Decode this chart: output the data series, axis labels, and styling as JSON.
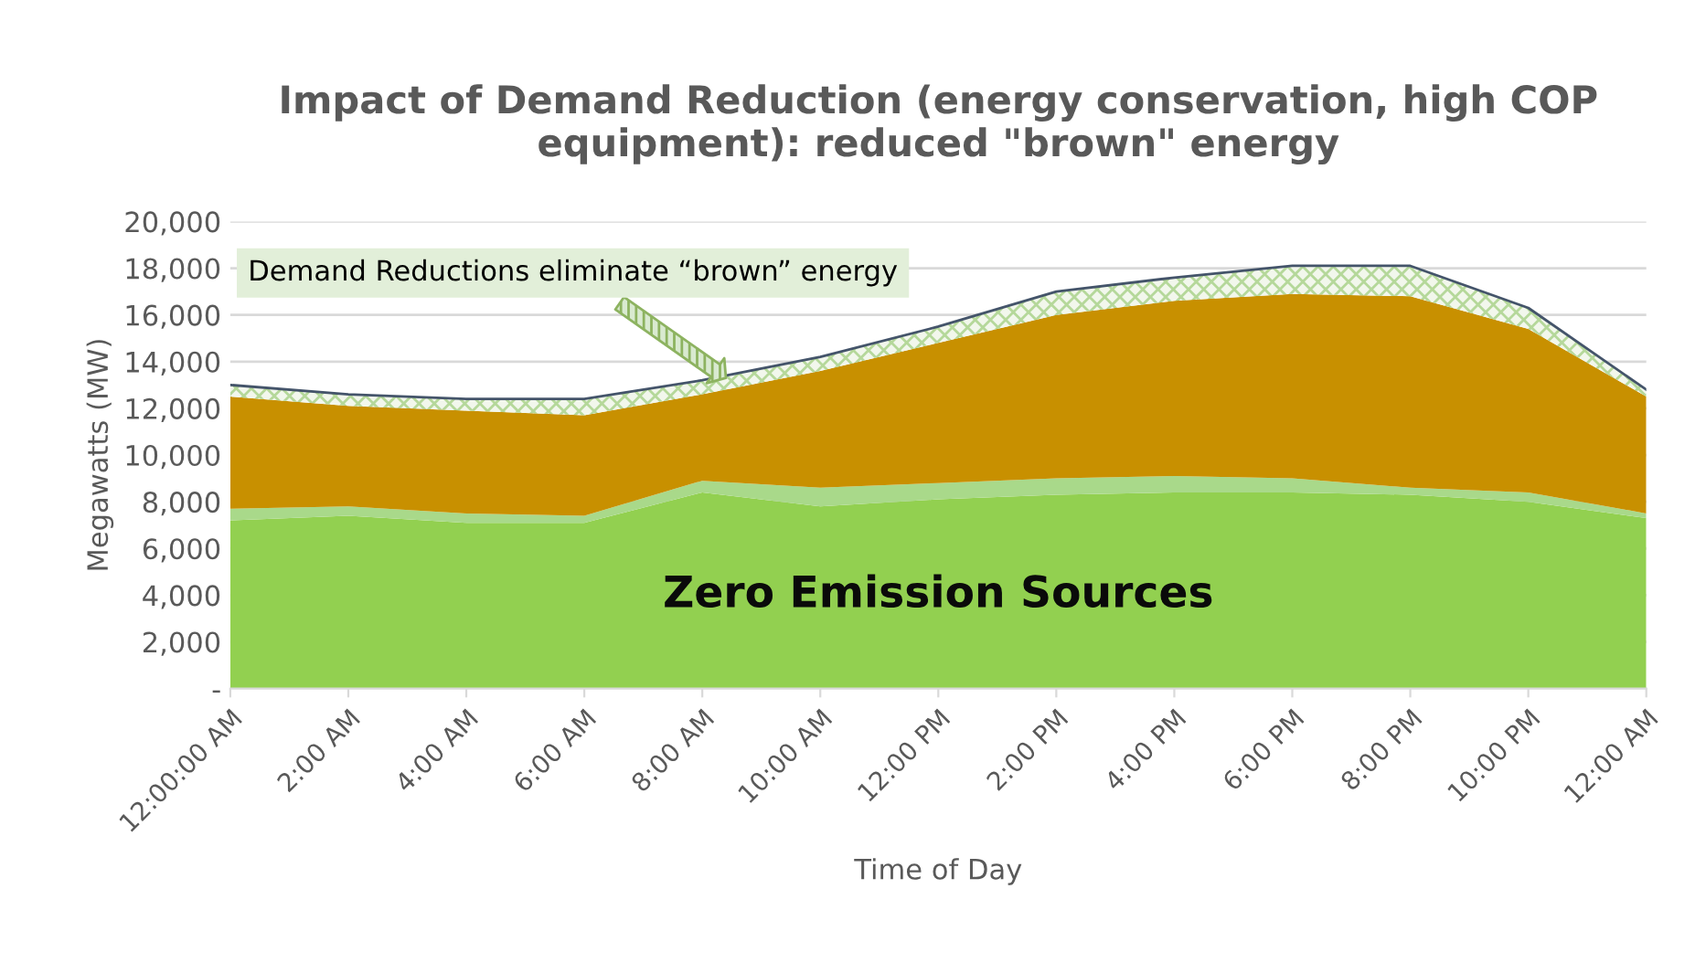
{
  "chart_data": {
    "type": "area",
    "stacked": true,
    "title": "Impact of Demand Reduction (energy conservation, high COP equipment): reduced \"brown\" energy",
    "xlabel": "Time of Day",
    "ylabel": "Megawatts (MW)",
    "x": [
      0,
      2,
      4,
      6,
      8,
      10,
      12,
      14,
      16,
      18,
      20,
      22,
      24
    ],
    "series": [
      {
        "color": "#92d050",
        "values": [
          7200,
          7400,
          7100,
          7100,
          8400,
          7800,
          8100,
          8300,
          8400,
          8400,
          8300,
          8000,
          7300
        ]
      },
      {
        "color": "#a9d98a",
        "values": [
          500,
          400,
          400,
          300,
          500,
          800,
          700,
          700,
          700,
          600,
          300,
          400,
          200
        ]
      },
      {
        "color": "#c89000",
        "values": [
          4800,
          4300,
          4400,
          4300,
          3700,
          5000,
          6000,
          7000,
          7500,
          7900,
          8200,
          7000,
          5000
        ]
      },
      {
        "color": "#f2f7ec",
        "values": [
          500,
          500,
          500,
          700,
          600,
          600,
          700,
          1000,
          1000,
          1200,
          1300,
          900,
          300
        ]
      }
    ],
    "xlim": [
      0,
      24
    ],
    "xticks": [
      {
        "value": 0,
        "label": "12:00:00 AM"
      },
      {
        "value": 2,
        "label": "2:00 AM"
      },
      {
        "value": 4,
        "label": "4:00 AM"
      },
      {
        "value": 6,
        "label": "6:00 AM"
      },
      {
        "value": 8,
        "label": "8:00 AM"
      },
      {
        "value": 10,
        "label": "10:00 AM"
      },
      {
        "value": 12,
        "label": "12:00 PM"
      },
      {
        "value": 14,
        "label": "2:00 PM"
      },
      {
        "value": 16,
        "label": "4:00 PM"
      },
      {
        "value": 18,
        "label": "6:00 PM"
      },
      {
        "value": 20,
        "label": "8:00 PM"
      },
      {
        "value": 22,
        "label": "10:00 PM"
      },
      {
        "value": 24,
        "label": "12:00 AM"
      }
    ],
    "ylim": [
      0,
      20000
    ],
    "yticks": [
      {
        "value": 0,
        "label": "-"
      },
      {
        "value": 2000,
        "label": "2,000"
      },
      {
        "value": 4000,
        "label": "4,000"
      },
      {
        "value": 6000,
        "label": "6,000"
      },
      {
        "value": 8000,
        "label": "8,000"
      },
      {
        "value": 10000,
        "label": "10,000"
      },
      {
        "value": 12000,
        "label": "12,000"
      },
      {
        "value": 14000,
        "label": "14,000"
      },
      {
        "value": 16000,
        "label": "16,000"
      },
      {
        "value": 18000,
        "label": "18,000"
      },
      {
        "value": 20000,
        "label": "20,000"
      }
    ],
    "grid": "y",
    "annotations": [
      "Demand Reductions eliminate “brown” energy",
      "Zero Emission Sources"
    ]
  }
}
